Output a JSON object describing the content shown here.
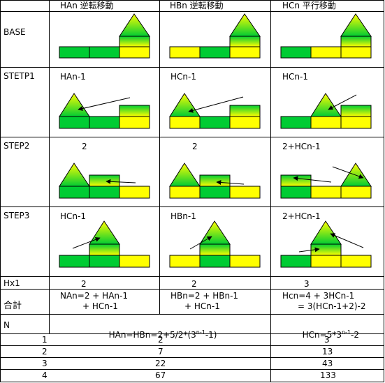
{
  "headers": {
    "col_a": "HAn 逆転移動",
    "col_b": "HBn 逆転移動",
    "col_c": "HCn 平行移動"
  },
  "row_labels": {
    "base": "BASE",
    "step1": "STETP1",
    "step2": "STEP2",
    "step3": "STEP3",
    "hx1": "Hx1",
    "total": "合計",
    "n": "N"
  },
  "step1_notes": {
    "a": "HAn-1",
    "b": "HCn-1",
    "c": "HCn-1"
  },
  "step2_notes": {
    "a": "2",
    "b": "2",
    "c": "2+HCn-1"
  },
  "step3_notes": {
    "a": "HCn-1",
    "b": "HBn-1",
    "c": "2+HCn-1"
  },
  "hx1": {
    "a": "2",
    "b": "2",
    "c": "3"
  },
  "total": {
    "a_line1": "NAn=2 + HAn-1",
    "a_line2": "+ HCn-1",
    "b_line1": "HBn=2 + HBn-1",
    "b_line2": "+ HCn-1",
    "c_line1": "Hcn=4 + 3HCn-1",
    "c_line2": "= 3(HCn-1+2)-2"
  },
  "formulas": {
    "ab_prefix": "HAn=HBn=2+5/2*(3",
    "ab_sup": "n-1",
    "ab_suffix": "-1)",
    "c_prefix": "HCn=5*3",
    "c_sup": "n-1",
    "c_suffix": "-2"
  },
  "values": [
    {
      "n": "1",
      "ab": "2",
      "c": "3"
    },
    {
      "n": "2",
      "ab": "7",
      "c": "13"
    },
    {
      "n": "3",
      "ab": "22",
      "c": "43"
    },
    {
      "n": "4",
      "ab": "67",
      "c": "133"
    }
  ],
  "colors": {
    "green": "#00cc33",
    "yellow": "#ffff00",
    "grid": "#000000"
  }
}
